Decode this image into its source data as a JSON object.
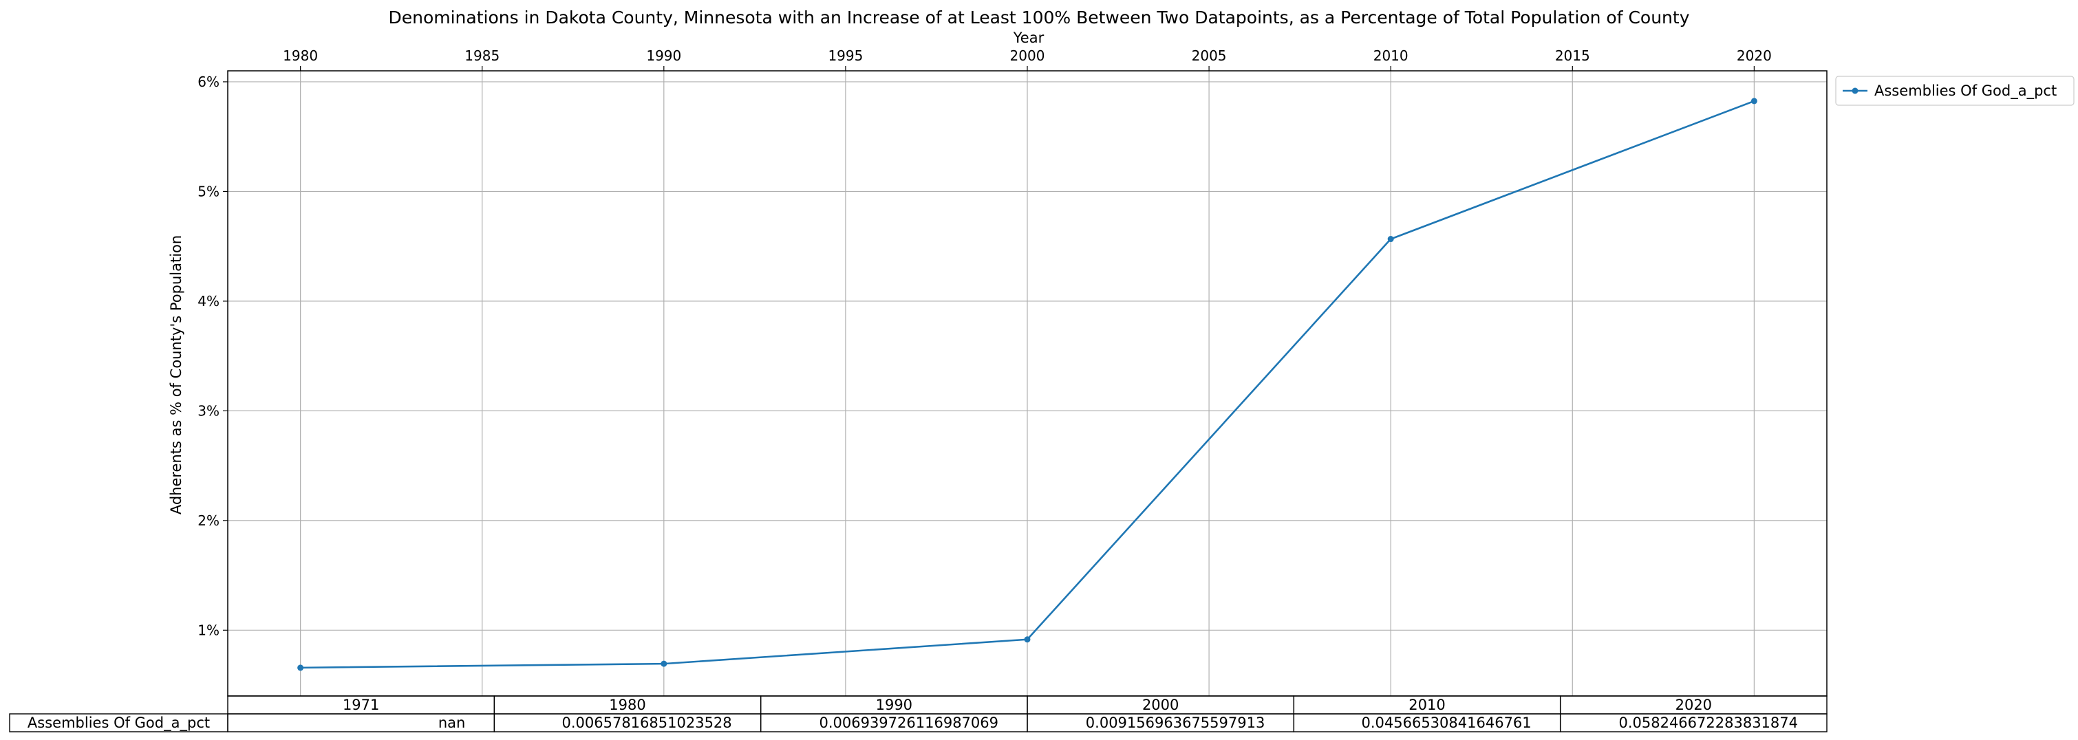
{
  "chart_data": {
    "type": "line",
    "title": "Denominations in Dakota County, Minnesota with an Increase of at Least 100% Between Two Datapoints, as a Percentage of Total Population of County",
    "xlabel": "Year",
    "ylabel": "Adherents as % of County's Population",
    "xlim": [
      1978,
      2022
    ],
    "ylim": [
      0.004,
      0.061
    ],
    "x_ticks": [
      1980,
      1985,
      1990,
      1995,
      2000,
      2005,
      2010,
      2015,
      2020
    ],
    "y_ticks": [
      {
        "value": 0.01,
        "label": "1%"
      },
      {
        "value": 0.02,
        "label": "2%"
      },
      {
        "value": 0.03,
        "label": "3%"
      },
      {
        "value": 0.04,
        "label": "4%"
      },
      {
        "value": 0.05,
        "label": "5%"
      },
      {
        "value": 0.06,
        "label": "6%"
      }
    ],
    "grid": true,
    "legend_position": "outside-top-right",
    "series": [
      {
        "name": "Assemblies Of God_a_pct",
        "color": "#1f77b4",
        "x": [
          1980,
          1990,
          2000,
          2010,
          2020
        ],
        "y": [
          0.00657816851023528,
          0.006939726116987069,
          0.009156963675597913,
          0.04566530841646761,
          0.05824667228383187
        ]
      }
    ],
    "table": {
      "columns": [
        "1971",
        "1980",
        "1990",
        "2000",
        "2010",
        "2020"
      ],
      "rows": [
        {
          "label": "Assemblies Of God_a_pct",
          "cells": [
            "nan",
            "0.00657816851023528",
            "0.006939726116987069",
            "0.009156963675597913",
            "0.04566530841646761",
            "0.058246672283831874"
          ]
        }
      ]
    }
  }
}
